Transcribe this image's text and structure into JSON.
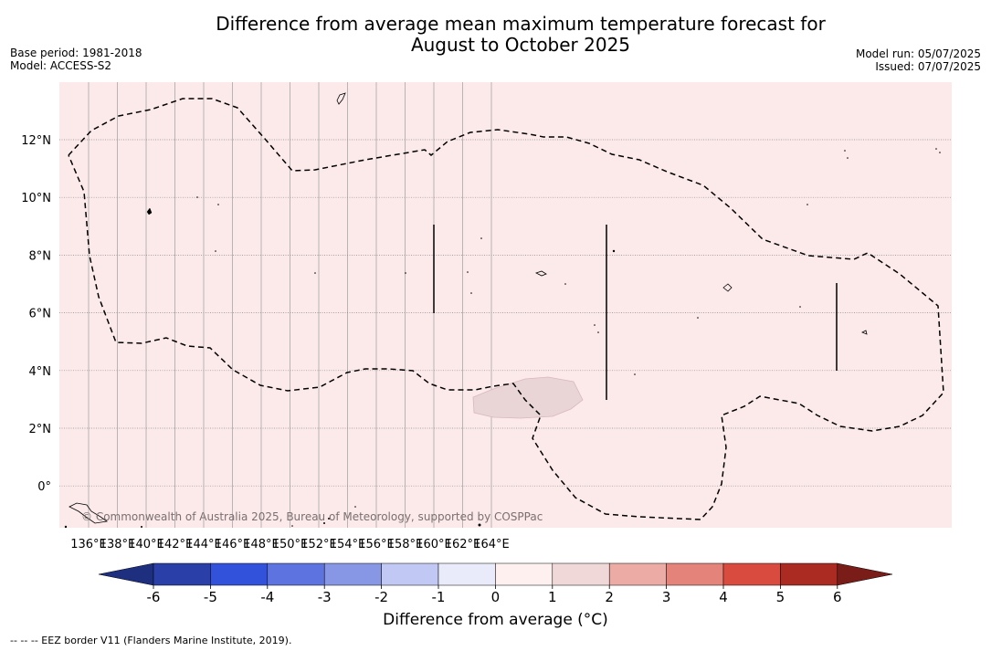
{
  "title_line1": "Difference from average mean maximum temperature forecast for",
  "title_line2": "August to October 2025",
  "base_period": "Base period: 1981-2018",
  "model": "Model: ACCESS-S2",
  "model_run": "Model run: 05/07/2025",
  "issued": "Issued: 07/07/2025",
  "copyright": "© Commonwealth of Australia 2025, Bureau of Meteorology, supported by COSPPac",
  "lon_labels": [
    "136°E",
    "138°E",
    "140°E",
    "142°E",
    "144°E",
    "146°E",
    "148°E",
    "150°E",
    "152°E",
    "154°E",
    "156°E",
    "158°E",
    "160°E",
    "162°E",
    "164°E"
  ],
  "lat_labels": [
    "12°N",
    "10°N",
    "8°N",
    "6°N",
    "4°N",
    "2°N",
    "0°"
  ],
  "colorbar": {
    "title": "Difference from average (°C)",
    "ticks": [
      "-6",
      "-5",
      "-4",
      "-3",
      "-2",
      "-1",
      "0",
      "1",
      "2",
      "3",
      "4",
      "5",
      "6"
    ],
    "colors": [
      "#2a3fa7",
      "#3352dc",
      "#5c73e0",
      "#8797e6",
      "#c0c8f3",
      "#e9ebfa",
      "#fdf0ef",
      "#f1d8d8",
      "#ecaca5",
      "#e4837a",
      "#d94a3f",
      "#ab2b22"
    ],
    "under_color": "#1f2f80",
    "over_color": "#7a1c18"
  },
  "map_colors": {
    "background": "#fceaea",
    "shaded_area": "#e9d4d6"
  },
  "footnote": "--  --  -- EEZ border V11 (Flanders Marine Institute, 2019)."
}
